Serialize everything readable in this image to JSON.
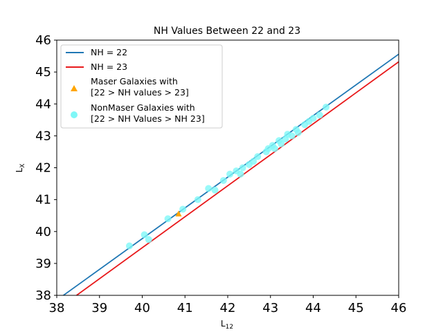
{
  "chart_data": {
    "type": "scatter",
    "title": "NH Values Between 22 and 23",
    "xlabel_main": "L",
    "xlabel_sub": "12",
    "ylabel_main": "L",
    "ylabel_sub": "X",
    "xlim": [
      38,
      46
    ],
    "ylim": [
      38,
      46
    ],
    "xticks": [
      "38",
      "39",
      "40",
      "41",
      "42",
      "43",
      "44",
      "45",
      "46"
    ],
    "yticks": [
      "38",
      "39",
      "40",
      "41",
      "42",
      "43",
      "44",
      "45",
      "46"
    ],
    "legend_position": "top-left",
    "grid": false,
    "lines": [
      {
        "name": "NH = 22",
        "color": "#1f77b4",
        "x": [
          38,
          46
        ],
        "y": [
          37.85,
          45.56
        ]
      },
      {
        "name": "NH = 23",
        "color": "#e8191b",
        "x": [
          38,
          46
        ],
        "y": [
          37.55,
          45.32
        ]
      }
    ],
    "series": [
      {
        "name_lines": [
          "Maser Galaxies with",
          "[22 > NH values > 23]"
        ],
        "marker": "triangle",
        "color": "#ffa500",
        "x": [
          40.85
        ],
        "y": [
          40.55
        ]
      },
      {
        "name_lines": [
          "NonMaser Galaxies with",
          "[22 > NH Values > NH 23]"
        ],
        "marker": "circle",
        "color": "#7ff7f7",
        "x": [
          39.7,
          40.05,
          40.15,
          40.6,
          40.95,
          41.3,
          41.55,
          41.7,
          41.9,
          42.05,
          42.2,
          42.3,
          42.35,
          42.5,
          42.6,
          42.7,
          42.9,
          42.95,
          43.05,
          43.1,
          43.2,
          43.25,
          43.35,
          43.4,
          43.5,
          43.6,
          43.65,
          43.8,
          43.9,
          44.0,
          44.15,
          44.3
        ],
        "y": [
          39.55,
          39.9,
          39.75,
          40.4,
          40.7,
          41.0,
          41.35,
          41.3,
          41.6,
          41.8,
          41.9,
          41.8,
          42.0,
          42.1,
          42.2,
          42.35,
          42.5,
          42.6,
          42.7,
          42.6,
          42.85,
          42.75,
          42.9,
          43.05,
          43.0,
          43.2,
          43.1,
          43.35,
          43.45,
          43.55,
          43.65,
          43.9
        ]
      }
    ]
  }
}
